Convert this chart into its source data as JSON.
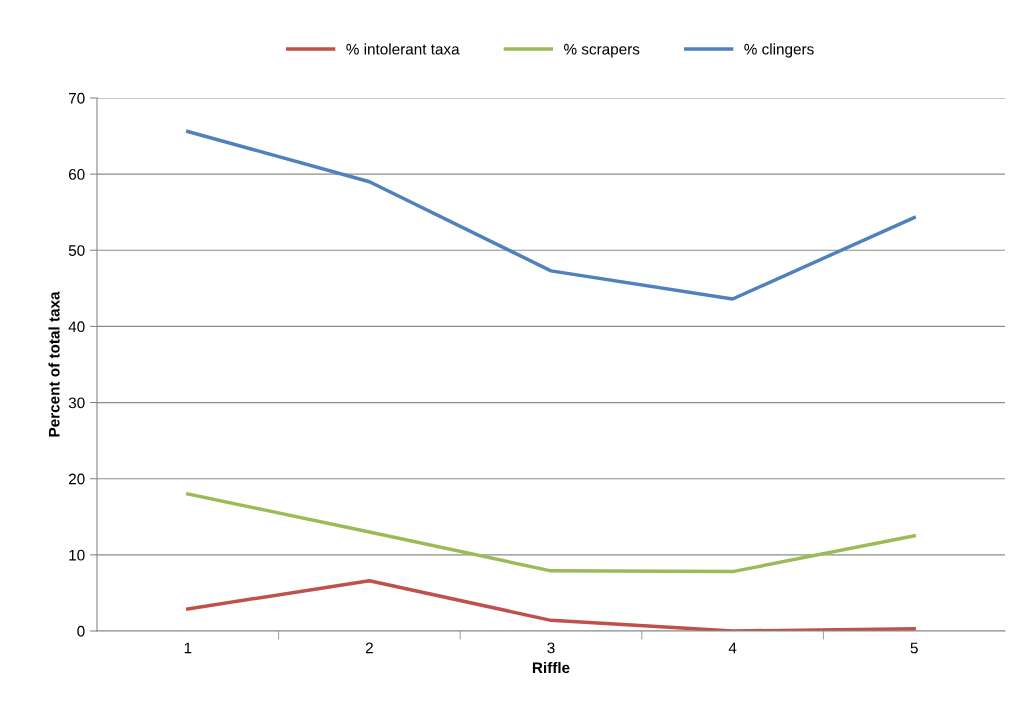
{
  "chart_data": {
    "type": "line",
    "xlabel": "Riffle",
    "ylabel": "Percent of total taxa",
    "categories": [
      "1",
      "2",
      "3",
      "4",
      "5"
    ],
    "series": [
      {
        "name": "% intolerant taxa",
        "color": "#c0504d",
        "values": [
          2.9,
          6.6,
          1.4,
          0,
          0.3
        ]
      },
      {
        "name": "% scrapers",
        "color": "#9bbb59",
        "values": [
          18.0,
          13.0,
          7.9,
          7.8,
          12.5
        ]
      },
      {
        "name": "% clingers",
        "color": "#4f81bd",
        "values": [
          65.6,
          59.0,
          47.3,
          43.6,
          54.3
        ]
      }
    ],
    "ylim": [
      0,
      70
    ],
    "yticks": [
      0,
      10,
      20,
      30,
      40,
      50,
      60,
      70
    ],
    "grid": "y",
    "legend": "top",
    "marker": "none",
    "line_style": "solid"
  }
}
